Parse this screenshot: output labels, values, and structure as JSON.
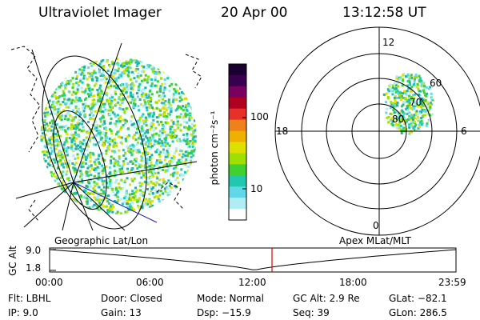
{
  "header": {
    "title": "Ultraviolet Imager",
    "date": "20 Apr 00",
    "time": "13:12:58 UT"
  },
  "colorbar": {
    "label": "photon cm⁻²s⁻¹",
    "ticks": [
      "100",
      "10"
    ],
    "colors": [
      "#1a0030",
      "#3a0050",
      "#7a0060",
      "#b00020",
      "#e8302a",
      "#f0801a",
      "#f0b000",
      "#e0e000",
      "#a0e000",
      "#40d030",
      "#20c8b0",
      "#60d8e8",
      "#b0ecf4",
      "#ffffff"
    ]
  },
  "labels": {
    "left_map": "Geographic Lat/Lon",
    "right_map": "Apex MLat/MLT"
  },
  "polar": {
    "mlt_labels": {
      "top": "12",
      "bottom": "0",
      "left": "18",
      "right": "6"
    },
    "lat_labels": [
      "60",
      "70",
      "80"
    ]
  },
  "timeline": {
    "ylabel": "GC Alt",
    "ytick_top": "9.0",
    "ytick_bottom": "1.8",
    "xticks": [
      "00:00",
      "06:00",
      "12:00",
      "18:00",
      "23:59"
    ],
    "marker_color": "#e00000"
  },
  "info": {
    "row1": [
      "Flt: LBHL",
      "Door: Closed",
      "Mode: Normal",
      "GC Alt: 2.9 Re",
      "GLat: −82.1"
    ],
    "row2": [
      "IP:  9.0",
      "Gain: 13",
      "Dsp:  −15.9",
      "Seq: 39",
      "GLon: 286.5"
    ]
  }
}
